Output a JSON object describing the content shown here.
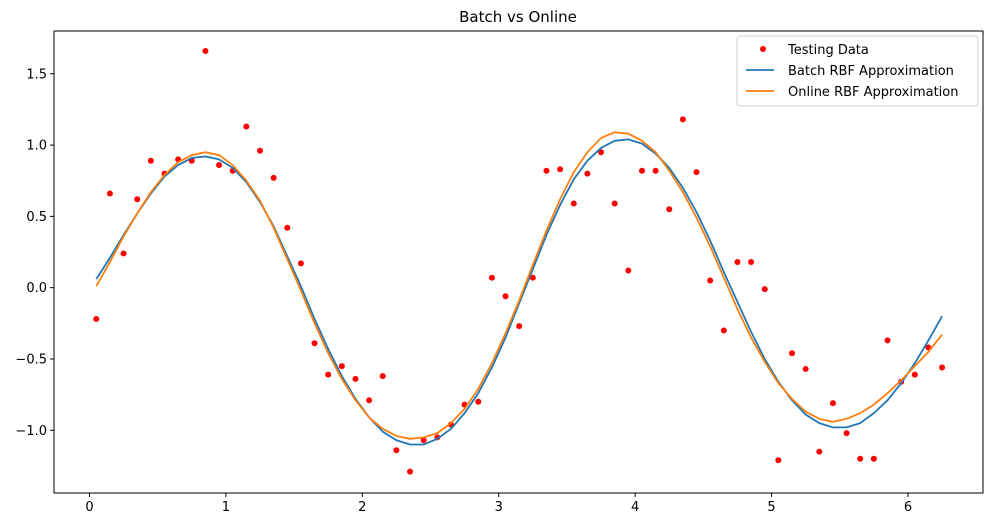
{
  "chart_data": {
    "type": "scatter",
    "title": "Batch vs Online",
    "xlabel": "",
    "ylabel": "",
    "xlim": [
      -0.26,
      6.55
    ],
    "ylim": [
      -1.44,
      1.8
    ],
    "x_ticks": [
      0,
      1,
      2,
      3,
      4,
      5,
      6
    ],
    "y_ticks": [
      -1.0,
      -0.5,
      0.0,
      0.5,
      1.0,
      1.5
    ],
    "x_tick_labels": [
      "0",
      "1",
      "2",
      "3",
      "4",
      "5",
      "6"
    ],
    "y_tick_labels": [
      "−1.0",
      "−0.5",
      "0.0",
      "0.5",
      "1.0",
      "1.5"
    ],
    "grid": false,
    "legend_position": "top-right",
    "series": [
      {
        "name": "Testing Data",
        "kind": "scatter",
        "color": "#ff0000",
        "x": [
          0.05,
          0.15,
          0.25,
          0.35,
          0.45,
          0.55,
          0.65,
          0.75,
          0.85,
          0.95,
          1.05,
          1.15,
          1.25,
          1.35,
          1.45,
          1.55,
          1.65,
          1.75,
          1.85,
          1.95,
          2.05,
          2.15,
          2.25,
          2.35,
          2.45,
          2.55,
          2.65,
          2.75,
          2.85,
          2.95,
          3.05,
          3.15,
          3.25,
          3.35,
          3.45,
          3.55,
          3.65,
          3.75,
          3.85,
          3.95,
          4.05,
          4.15,
          4.25,
          4.35,
          4.45,
          4.55,
          4.65,
          4.75,
          4.85,
          4.95,
          5.05,
          5.15,
          5.25,
          5.35,
          5.45,
          5.55,
          5.65,
          5.75,
          5.85,
          5.95,
          6.05,
          6.15,
          6.25
        ],
        "y": [
          -0.22,
          0.66,
          0.24,
          0.62,
          0.89,
          0.8,
          0.9,
          0.89,
          1.66,
          0.86,
          0.82,
          1.13,
          0.96,
          0.77,
          0.42,
          0.17,
          -0.39,
          -0.61,
          -0.55,
          -0.64,
          -0.79,
          -0.62,
          -1.14,
          -1.29,
          -1.07,
          -1.05,
          -0.96,
          -0.82,
          -0.8,
          0.07,
          -0.06,
          -0.27,
          0.07,
          0.82,
          0.83,
          0.59,
          0.8,
          0.95,
          0.59,
          0.12,
          0.82,
          0.82,
          0.55,
          1.18,
          0.81,
          0.05,
          -0.3,
          0.18,
          0.18,
          -0.01,
          -1.21,
          -0.46,
          -0.57,
          -1.15,
          -0.81,
          -1.02,
          -1.2,
          -1.2,
          -0.37,
          -0.66,
          -0.61,
          -0.42,
          -0.56
        ]
      },
      {
        "name": "Batch RBF Approximation",
        "kind": "line",
        "color": "#1f77b4",
        "x": [
          0.05,
          0.15,
          0.25,
          0.35,
          0.45,
          0.55,
          0.65,
          0.75,
          0.85,
          0.95,
          1.05,
          1.15,
          1.25,
          1.35,
          1.45,
          1.55,
          1.65,
          1.75,
          1.85,
          1.95,
          2.05,
          2.15,
          2.25,
          2.35,
          2.45,
          2.55,
          2.65,
          2.75,
          2.85,
          2.95,
          3.05,
          3.15,
          3.25,
          3.35,
          3.45,
          3.55,
          3.65,
          3.75,
          3.85,
          3.95,
          4.05,
          4.15,
          4.25,
          4.35,
          4.45,
          4.55,
          4.65,
          4.75,
          4.85,
          4.95,
          5.05,
          5.15,
          5.25,
          5.35,
          5.45,
          5.55,
          5.65,
          5.75,
          5.85,
          5.95,
          6.05,
          6.15,
          6.25
        ],
        "y": [
          0.06,
          0.21,
          0.37,
          0.52,
          0.66,
          0.78,
          0.86,
          0.91,
          0.92,
          0.9,
          0.84,
          0.74,
          0.6,
          0.43,
          0.22,
          0.01,
          -0.22,
          -0.43,
          -0.62,
          -0.78,
          -0.91,
          -1.01,
          -1.07,
          -1.1,
          -1.1,
          -1.06,
          -0.99,
          -0.88,
          -0.74,
          -0.56,
          -0.35,
          -0.11,
          0.13,
          0.37,
          0.58,
          0.76,
          0.89,
          0.98,
          1.03,
          1.04,
          1.01,
          0.94,
          0.84,
          0.7,
          0.53,
          0.33,
          0.11,
          -0.1,
          -0.31,
          -0.5,
          -0.66,
          -0.79,
          -0.89,
          -0.95,
          -0.98,
          -0.98,
          -0.95,
          -0.88,
          -0.79,
          -0.67,
          -0.53,
          -0.37,
          -0.2
        ]
      },
      {
        "name": "Online RBF Approximation",
        "kind": "line",
        "color": "#ff7f0e",
        "x": [
          0.05,
          0.15,
          0.25,
          0.35,
          0.45,
          0.55,
          0.65,
          0.75,
          0.85,
          0.95,
          1.05,
          1.15,
          1.25,
          1.35,
          1.45,
          1.55,
          1.65,
          1.75,
          1.85,
          1.95,
          2.05,
          2.15,
          2.25,
          2.35,
          2.45,
          2.55,
          2.65,
          2.75,
          2.85,
          2.95,
          3.05,
          3.15,
          3.25,
          3.35,
          3.45,
          3.55,
          3.65,
          3.75,
          3.85,
          3.95,
          4.05,
          4.15,
          4.25,
          4.35,
          4.45,
          4.55,
          4.65,
          4.75,
          4.85,
          4.95,
          5.05,
          5.15,
          5.25,
          5.35,
          5.45,
          5.55,
          5.65,
          5.75,
          5.85,
          5.95,
          6.05,
          6.15,
          6.25
        ],
        "y": [
          0.01,
          0.18,
          0.36,
          0.52,
          0.67,
          0.79,
          0.88,
          0.93,
          0.95,
          0.93,
          0.86,
          0.75,
          0.61,
          0.42,
          0.2,
          -0.02,
          -0.25,
          -0.46,
          -0.64,
          -0.79,
          -0.91,
          -0.99,
          -1.04,
          -1.06,
          -1.05,
          -1.02,
          -0.95,
          -0.85,
          -0.71,
          -0.53,
          -0.32,
          -0.09,
          0.16,
          0.4,
          0.62,
          0.81,
          0.95,
          1.05,
          1.09,
          1.08,
          1.03,
          0.95,
          0.82,
          0.67,
          0.49,
          0.29,
          0.07,
          -0.15,
          -0.35,
          -0.52,
          -0.67,
          -0.78,
          -0.87,
          -0.92,
          -0.94,
          -0.92,
          -0.88,
          -0.82,
          -0.74,
          -0.65,
          -0.55,
          -0.45,
          -0.33
        ]
      }
    ]
  }
}
